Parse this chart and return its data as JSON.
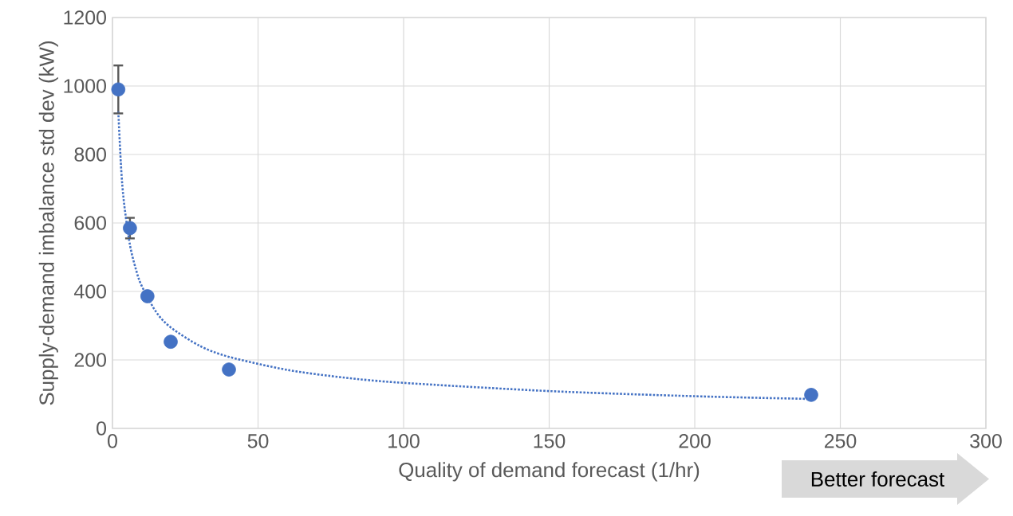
{
  "chart_data": {
    "type": "scatter",
    "xlabel": "Quality of demand forecast (1/hr)",
    "ylabel": "Supply-demand imbalance std dev (kW)",
    "annotations": [
      "Better forecast"
    ],
    "xlim": [
      0,
      300
    ],
    "ylim": [
      0,
      1200
    ],
    "xticks": [
      0,
      50,
      100,
      150,
      200,
      250,
      300
    ],
    "yticks": [
      0,
      200,
      400,
      600,
      800,
      1000,
      1200
    ],
    "grid": true,
    "series": [
      {
        "color": "#4472c4",
        "marker": "circle",
        "x": [
          2,
          6,
          12,
          20,
          40,
          240
        ],
        "values": [
          990,
          585,
          386,
          253,
          172,
          98
        ],
        "errors": [
          [
            920,
            1060
          ],
          30,
          null,
          null,
          null,
          null
        ]
      },
      {
        "type": "line",
        "color": "#4472c4",
        "marker": "none",
        "line_style": "dotted",
        "x": [
          2,
          3,
          4,
          6,
          8,
          10,
          15,
          20,
          30,
          40,
          60,
          80,
          100,
          150,
          200,
          240
        ],
        "values": [
          925,
          756,
          656,
          536,
          466,
          417,
          340,
          295,
          241,
          209,
          171,
          148,
          133,
          109,
          94,
          86
        ]
      }
    ]
  }
}
